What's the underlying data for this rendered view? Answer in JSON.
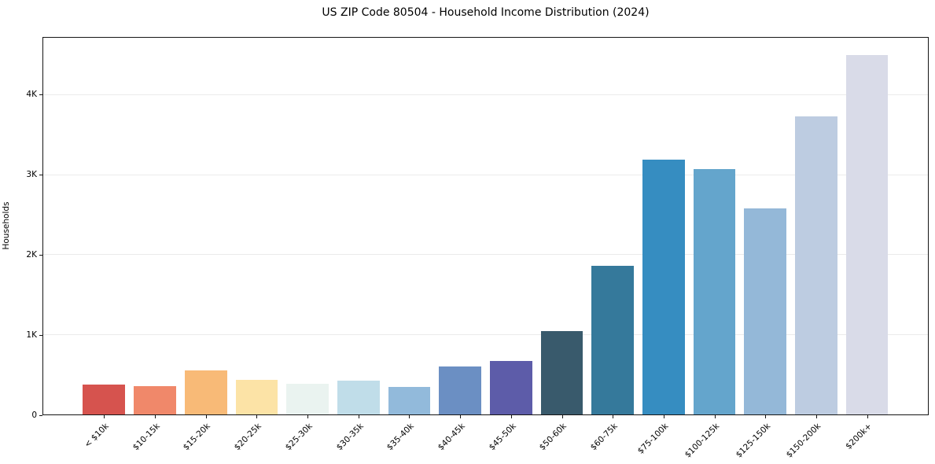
{
  "chart_data": {
    "type": "bar",
    "title": "US ZIP Code 80504 - Household Income Distribution (2024)",
    "xlabel": "",
    "ylabel": "Households",
    "categories": [
      "< $10k",
      "$10-15k",
      "$15-20k",
      "$20-25k",
      "$25-30k",
      "$30-35k",
      "$35-40k",
      "$40-45k",
      "$45-50k",
      "$50-60k",
      "$60-75k",
      "$75-100k",
      "$100-125k",
      "$125-150k",
      "$150-200k",
      "$200k+"
    ],
    "values": [
      375,
      350,
      555,
      435,
      380,
      420,
      345,
      605,
      670,
      1040,
      1860,
      3195,
      3075,
      2580,
      3735,
      4505
    ],
    "bar_colors": [
      "#d6534e",
      "#f0886a",
      "#f8ba77",
      "#fce3a6",
      "#eaf3f0",
      "#c0dde9",
      "#92badb",
      "#6b8fc3",
      "#5d5ca9",
      "#395a6c",
      "#35799b",
      "#368dc1",
      "#64a5cc",
      "#94b8d8",
      "#bdcce1",
      "#d9dbe8"
    ],
    "ylim": [
      0,
      4720
    ],
    "yticks": [
      {
        "value": 0,
        "label": "0"
      },
      {
        "value": 1000,
        "label": "1K"
      },
      {
        "value": 2000,
        "label": "2K"
      },
      {
        "value": 3000,
        "label": "3K"
      },
      {
        "value": 4000,
        "label": "4K"
      }
    ],
    "grid": "horizontal",
    "legend": "none",
    "background_color": "#ffffff",
    "gridline_color": "#ebebeb",
    "spine_color": "#151515",
    "text_color": "#000000"
  }
}
